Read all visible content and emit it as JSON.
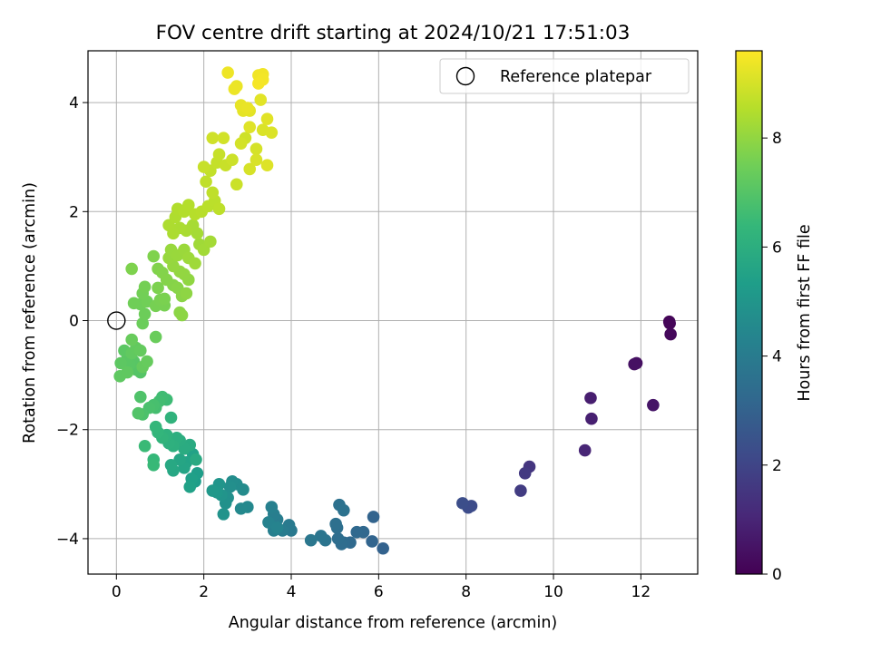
{
  "chart_data": {
    "type": "scatter",
    "title": "FOV centre drift starting at 2024/10/21 17:51:03",
    "xlabel": "Angular distance from reference (arcmin)",
    "ylabel": "Rotation from reference (arcmin)",
    "xlim": [
      -0.65,
      13.3
    ],
    "ylim": [
      -4.65,
      4.95
    ],
    "xticks": [
      0,
      2,
      4,
      6,
      8,
      10,
      12
    ],
    "yticks": [
      -4,
      -2,
      0,
      2,
      4
    ],
    "grid": true,
    "legend": {
      "position": "top-right",
      "label": "Reference platepar"
    },
    "reference_point": {
      "x": 0,
      "y": 0
    },
    "colorbar": {
      "label": "Hours from first FF file",
      "min": 0,
      "max": 9.6,
      "ticks": [
        0,
        2,
        4,
        6,
        8
      ],
      "colormap": [
        "#440154",
        "#482878",
        "#3e4989",
        "#31688e",
        "#26828e",
        "#1f9e89",
        "#35b779",
        "#6ece58",
        "#b5de2b",
        "#fde725"
      ]
    },
    "points": [
      [
        12.65,
        -0.02,
        0.1
      ],
      [
        12.66,
        -0.05,
        0.15
      ],
      [
        12.68,
        -0.25,
        0.2
      ],
      [
        11.9,
        -0.78,
        0.4
      ],
      [
        11.85,
        -0.8,
        0.45
      ],
      [
        12.28,
        -1.55,
        0.55
      ],
      [
        10.85,
        -1.42,
        0.8
      ],
      [
        10.87,
        -1.8,
        0.85
      ],
      [
        10.72,
        -2.38,
        1.0
      ],
      [
        9.45,
        -2.68,
        1.5
      ],
      [
        9.35,
        -2.8,
        1.6
      ],
      [
        9.25,
        -3.12,
        1.7
      ],
      [
        8.12,
        -3.4,
        2.2
      ],
      [
        8.05,
        -3.43,
        2.25
      ],
      [
        7.92,
        -3.35,
        2.3
      ],
      [
        6.1,
        -4.18,
        3.0
      ],
      [
        5.88,
        -3.6,
        3.05
      ],
      [
        5.85,
        -4.05,
        3.1
      ],
      [
        5.65,
        -3.88,
        3.2
      ],
      [
        5.5,
        -3.88,
        3.25
      ],
      [
        5.35,
        -4.07,
        3.3
      ],
      [
        5.2,
        -4.07,
        3.35
      ],
      [
        5.15,
        -4.1,
        3.4
      ],
      [
        5.07,
        -4.0,
        3.45
      ],
      [
        5.05,
        -3.8,
        3.5
      ],
      [
        5.02,
        -3.73,
        3.52
      ],
      [
        5.1,
        -3.38,
        3.55
      ],
      [
        5.2,
        -3.48,
        3.6
      ],
      [
        4.78,
        -4.03,
        3.7
      ],
      [
        4.68,
        -3.95,
        3.75
      ],
      [
        4.45,
        -4.03,
        3.8
      ],
      [
        4.0,
        -3.85,
        3.9
      ],
      [
        3.95,
        -3.75,
        3.95
      ],
      [
        3.8,
        -3.85,
        4.0
      ],
      [
        3.68,
        -3.65,
        4.05
      ],
      [
        3.6,
        -3.55,
        4.1
      ],
      [
        3.6,
        -3.85,
        4.15
      ],
      [
        3.55,
        -3.42,
        4.2
      ],
      [
        3.48,
        -3.7,
        4.25
      ],
      [
        3.68,
        -3.8,
        4.3
      ],
      [
        3.0,
        -3.42,
        4.5
      ],
      [
        2.85,
        -3.45,
        4.55
      ],
      [
        2.9,
        -3.1,
        4.6
      ],
      [
        2.75,
        -3.0,
        4.65
      ],
      [
        2.65,
        -2.95,
        4.7
      ],
      [
        2.6,
        -3.05,
        4.75
      ],
      [
        2.55,
        -3.25,
        4.8
      ],
      [
        2.5,
        -3.35,
        4.85
      ],
      [
        2.45,
        -3.55,
        4.9
      ],
      [
        2.4,
        -3.2,
        4.95
      ],
      [
        2.35,
        -3.0,
        5.0
      ],
      [
        2.3,
        -3.15,
        5.05
      ],
      [
        2.2,
        -3.12,
        5.1
      ],
      [
        1.8,
        -2.95,
        5.3
      ],
      [
        1.85,
        -2.8,
        5.35
      ],
      [
        1.72,
        -2.9,
        5.4
      ],
      [
        1.68,
        -3.05,
        5.45
      ],
      [
        1.75,
        -2.45,
        5.5
      ],
      [
        1.6,
        -2.6,
        5.55
      ],
      [
        1.55,
        -2.7,
        5.6
      ],
      [
        1.45,
        -2.55,
        5.65
      ],
      [
        1.3,
        -2.75,
        5.7
      ],
      [
        1.25,
        -2.65,
        5.75
      ],
      [
        1.82,
        -2.55,
        5.8
      ],
      [
        1.68,
        -2.28,
        5.85
      ],
      [
        1.55,
        -2.35,
        5.9
      ],
      [
        1.45,
        -2.2,
        5.95
      ],
      [
        1.38,
        -2.15,
        6.0
      ],
      [
        1.3,
        -2.3,
        6.05
      ],
      [
        1.2,
        -2.25,
        6.1
      ],
      [
        1.15,
        -2.1,
        6.15
      ],
      [
        1.25,
        -1.78,
        6.2
      ],
      [
        1.05,
        -2.15,
        6.25
      ],
      [
        0.95,
        -2.05,
        6.3
      ],
      [
        0.9,
        -1.95,
        6.35
      ],
      [
        0.85,
        -2.55,
        6.4
      ],
      [
        0.85,
        -2.65,
        6.45
      ],
      [
        0.65,
        -2.3,
        6.5
      ],
      [
        1.15,
        -1.45,
        6.55
      ],
      [
        1.05,
        -1.4,
        6.6
      ],
      [
        0.98,
        -1.48,
        6.65
      ],
      [
        0.9,
        -1.6,
        6.7
      ],
      [
        0.85,
        -1.55,
        6.75
      ],
      [
        0.75,
        -1.6,
        6.8
      ],
      [
        0.6,
        -1.72,
        6.85
      ],
      [
        0.55,
        -1.4,
        6.9
      ],
      [
        0.5,
        -1.7,
        6.95
      ],
      [
        0.55,
        -0.95,
        7.0
      ],
      [
        0.45,
        -0.9,
        7.02
      ],
      [
        0.4,
        -0.75,
        7.05
      ],
      [
        0.3,
        -0.8,
        7.08
      ],
      [
        0.25,
        -0.7,
        7.1
      ],
      [
        0.18,
        -0.55,
        7.12
      ],
      [
        0.1,
        -0.78,
        7.15
      ],
      [
        0.08,
        -1.02,
        7.18
      ],
      [
        0.25,
        -0.95,
        7.2
      ],
      [
        0.35,
        -0.6,
        7.22
      ],
      [
        0.45,
        -0.5,
        7.25
      ],
      [
        0.55,
        -0.55,
        7.28
      ],
      [
        0.6,
        -0.85,
        7.3
      ],
      [
        0.7,
        -0.75,
        7.32
      ],
      [
        0.35,
        -0.35,
        7.35
      ],
      [
        0.9,
        -0.3,
        7.38
      ],
      [
        0.6,
        -0.05,
        7.4
      ],
      [
        0.65,
        0.12,
        7.42
      ],
      [
        0.55,
        0.3,
        7.45
      ],
      [
        0.4,
        0.32,
        7.48
      ],
      [
        0.7,
        0.35,
        7.5
      ],
      [
        0.6,
        0.5,
        7.52
      ],
      [
        0.65,
        0.62,
        7.55
      ],
      [
        0.9,
        0.27,
        7.58
      ],
      [
        1.1,
        0.28,
        7.6
      ],
      [
        1.0,
        0.38,
        7.62
      ],
      [
        1.1,
        0.4,
        7.65
      ],
      [
        0.95,
        0.6,
        7.68
      ],
      [
        0.35,
        0.95,
        7.7
      ],
      [
        0.85,
        1.18,
        7.72
      ],
      [
        0.95,
        0.95,
        7.75
      ],
      [
        1.05,
        0.88,
        7.78
      ],
      [
        1.15,
        0.75,
        7.8
      ],
      [
        1.3,
        0.65,
        7.82
      ],
      [
        1.4,
        0.6,
        7.85
      ],
      [
        1.5,
        0.45,
        7.88
      ],
      [
        1.45,
        0.15,
        7.9
      ],
      [
        1.5,
        0.1,
        7.92
      ],
      [
        1.6,
        0.5,
        7.95
      ],
      [
        1.65,
        0.75,
        7.98
      ],
      [
        1.55,
        0.85,
        8.0
      ],
      [
        1.45,
        0.9,
        8.02
      ],
      [
        1.3,
        1.0,
        8.05
      ],
      [
        1.2,
        1.15,
        8.08
      ],
      [
        1.25,
        1.3,
        8.1
      ],
      [
        1.4,
        1.2,
        8.12
      ],
      [
        1.55,
        1.3,
        8.15
      ],
      [
        1.65,
        1.15,
        8.18
      ],
      [
        1.8,
        1.05,
        8.2
      ],
      [
        1.9,
        1.4,
        8.22
      ],
      [
        2.0,
        1.3,
        8.25
      ],
      [
        2.15,
        1.45,
        8.28
      ],
      [
        1.85,
        1.6,
        8.3
      ],
      [
        1.75,
        1.75,
        8.32
      ],
      [
        1.6,
        1.65,
        8.35
      ],
      [
        1.45,
        1.7,
        8.38
      ],
      [
        1.3,
        1.6,
        8.4
      ],
      [
        1.2,
        1.75,
        8.42
      ],
      [
        1.35,
        1.9,
        8.45
      ],
      [
        1.4,
        2.05,
        8.48
      ],
      [
        1.55,
        2.0,
        8.5
      ],
      [
        1.65,
        2.12,
        8.52
      ],
      [
        1.8,
        1.95,
        8.55
      ],
      [
        1.95,
        2.0,
        8.58
      ],
      [
        2.1,
        2.1,
        8.6
      ],
      [
        2.25,
        2.2,
        8.62
      ],
      [
        2.35,
        2.05,
        8.65
      ],
      [
        2.2,
        2.35,
        8.68
      ],
      [
        2.05,
        2.55,
        8.7
      ],
      [
        2.15,
        2.75,
        8.72
      ],
      [
        2.3,
        2.9,
        8.75
      ],
      [
        2.35,
        3.05,
        8.78
      ],
      [
        2.0,
        2.82,
        8.8
      ],
      [
        2.5,
        2.85,
        8.82
      ],
      [
        2.75,
        2.5,
        8.85
      ],
      [
        2.65,
        2.95,
        8.88
      ],
      [
        2.95,
        3.35,
        8.9
      ],
      [
        2.2,
        3.35,
        8.92
      ],
      [
        2.45,
        3.35,
        8.95
      ],
      [
        2.85,
        3.25,
        8.98
      ],
      [
        3.2,
        3.15,
        9.0
      ],
      [
        3.05,
        2.78,
        9.02
      ],
      [
        3.2,
        2.95,
        9.05
      ],
      [
        3.35,
        3.5,
        9.08
      ],
      [
        3.55,
        3.45,
        9.1
      ],
      [
        3.45,
        2.85,
        9.12
      ],
      [
        3.05,
        3.55,
        9.15
      ],
      [
        3.45,
        3.7,
        9.18
      ],
      [
        3.3,
        4.05,
        9.2
      ],
      [
        3.05,
        3.85,
        9.22
      ],
      [
        2.9,
        3.85,
        9.25
      ],
      [
        2.85,
        3.95,
        9.28
      ],
      [
        3.0,
        3.9,
        9.3
      ],
      [
        2.75,
        4.3,
        9.32
      ],
      [
        2.7,
        4.25,
        9.35
      ],
      [
        2.55,
        4.55,
        9.38
      ],
      [
        3.25,
        4.5,
        9.4
      ],
      [
        3.35,
        4.52,
        9.42
      ],
      [
        3.35,
        4.42,
        9.45
      ],
      [
        3.25,
        4.35,
        9.48
      ]
    ]
  }
}
